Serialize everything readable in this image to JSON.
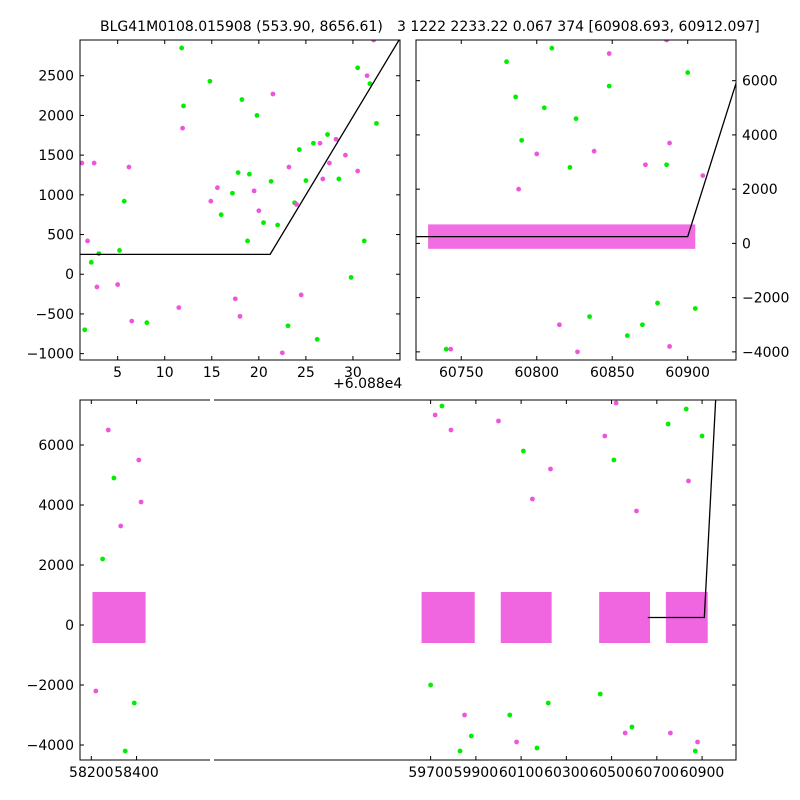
{
  "title_left": "BLG41M0108.015908 (553.90, 8656.61)",
  "title_right": "3 1222 2233.22 0.067 374 [60908.693, 60912.097]",
  "colors": {
    "series_1": "#00ee00",
    "series_2": "#ee55dd",
    "model": "#000000"
  },
  "chart_data": [
    {
      "id": "panel_zoom_recent",
      "type": "scatter",
      "x_offset_label": "+6.088e4",
      "xlim": [
        1,
        35
      ],
      "ylim": [
        -1080,
        2950
      ],
      "xticks": [
        5,
        10,
        15,
        20,
        25,
        30
      ],
      "yticks": [
        -1000,
        -500,
        0,
        500,
        1000,
        1500,
        2000,
        2500
      ],
      "series": [
        {
          "color": "#00ee00",
          "points": [
            [
              1.5,
              -700
            ],
            [
              2.2,
              150
            ],
            [
              3,
              260
            ],
            [
              5.2,
              300
            ],
            [
              5.7,
              920
            ],
            [
              8.1,
              -610
            ],
            [
              11.8,
              2850
            ],
            [
              12,
              2120
            ],
            [
              14.8,
              2430
            ],
            [
              16,
              750
            ],
            [
              17.2,
              1020
            ],
            [
              17.8,
              1280
            ],
            [
              18.2,
              2200
            ],
            [
              19,
              1260
            ],
            [
              19.8,
              2000
            ],
            [
              21.3,
              1170
            ],
            [
              22,
              620
            ],
            [
              23.1,
              -650
            ],
            [
              24.3,
              1570
            ],
            [
              25,
              1180
            ],
            [
              25.8,
              1650
            ],
            [
              26.2,
              -820
            ],
            [
              27.3,
              1760
            ],
            [
              29.8,
              -40
            ],
            [
              30.5,
              2600
            ],
            [
              31.2,
              420
            ],
            [
              31.8,
              2400
            ],
            [
              32.5,
              1900
            ],
            [
              20.5,
              650
            ],
            [
              18.8,
              420
            ],
            [
              23.8,
              900
            ],
            [
              28.5,
              1200
            ]
          ]
        },
        {
          "color": "#ee55dd",
          "points": [
            [
              1.2,
              1400
            ],
            [
              1.8,
              420
            ],
            [
              2.5,
              1400
            ],
            [
              2.8,
              -160
            ],
            [
              5,
              -130
            ],
            [
              6.2,
              1350
            ],
            [
              6.5,
              -590
            ],
            [
              11.5,
              -420
            ],
            [
              11.9,
              1840
            ],
            [
              14.9,
              920
            ],
            [
              15.6,
              1090
            ],
            [
              17.5,
              -310
            ],
            [
              18,
              -530
            ],
            [
              21.5,
              2270
            ],
            [
              22.5,
              -990
            ],
            [
              23.2,
              1350
            ],
            [
              24.5,
              -260
            ],
            [
              26.5,
              1650
            ],
            [
              27.5,
              1400
            ],
            [
              28.2,
              1700
            ],
            [
              29.2,
              1500
            ],
            [
              30.5,
              1300
            ],
            [
              31.5,
              2500
            ],
            [
              32.2,
              2950
            ],
            [
              19.5,
              1050
            ],
            [
              24,
              880
            ],
            [
              20,
              800
            ],
            [
              26.8,
              1200
            ]
          ]
        }
      ],
      "model": [
        [
          1,
          250
        ],
        [
          21.2,
          250
        ],
        [
          34.9,
          2950
        ]
      ]
    },
    {
      "id": "panel_season_recent",
      "type": "scatter",
      "xlim": [
        60720,
        60932
      ],
      "ylim": [
        -4300,
        7500
      ],
      "xticks": [
        60750,
        60800,
        60850,
        60900
      ],
      "yticks": [
        -4000,
        -2000,
        0,
        2000,
        4000,
        6000
      ],
      "series": [
        {
          "color": "#00ee00",
          "points": [
            [
              60740,
              -3900
            ],
            [
              60780,
              6700
            ],
            [
              60786,
              5400
            ],
            [
              60790,
              3800
            ],
            [
              60805,
              5000
            ],
            [
              60810,
              7200
            ],
            [
              60822,
              2800
            ],
            [
              60826,
              4600
            ],
            [
              60835,
              -2700
            ],
            [
              60848,
              5800
            ],
            [
              60860,
              -3400
            ],
            [
              60870,
              -3000
            ],
            [
              60880,
              -2200
            ],
            [
              60900,
              6300
            ],
            [
              60905,
              -2400
            ],
            [
              60886,
              2900
            ]
          ]
        },
        {
          "color": "#ee55dd",
          "points": [
            [
              60743,
              -3900
            ],
            [
              60788,
              2000
            ],
            [
              60800,
              3300
            ],
            [
              60815,
              -3000
            ],
            [
              60827,
              -4000
            ],
            [
              60838,
              3400
            ],
            [
              60848,
              7000
            ],
            [
              60872,
              2900
            ],
            [
              60886,
              7500
            ],
            [
              60888,
              3700
            ],
            [
              60888,
              -3800
            ],
            [
              60910,
              2500
            ]
          ]
        }
      ],
      "model": [
        [
          60720,
          250
        ],
        [
          60900,
          250
        ],
        [
          60932,
          5900
        ]
      ]
    },
    {
      "id": "panel_full",
      "type": "scatter",
      "xlim": [
        58150,
        61050
      ],
      "ylim": [
        -4500,
        7500
      ],
      "xticks": [
        58200,
        58400,
        59700,
        59900,
        60100,
        60300,
        60500,
        60700,
        60900
      ],
      "yticks": [
        -4000,
        -2000,
        0,
        2000,
        4000,
        6000
      ],
      "series": [
        {
          "color": "#00ee00",
          "points": [
            [
              58250,
              2200
            ],
            [
              58300,
              4900
            ],
            [
              58350,
              -4200
            ],
            [
              58390,
              -2600
            ],
            [
              59700,
              -2000
            ],
            [
              59750,
              7300
            ],
            [
              59830,
              -4200
            ],
            [
              59880,
              -3700
            ],
            [
              60050,
              -3000
            ],
            [
              60110,
              5800
            ],
            [
              60170,
              -4100
            ],
            [
              60220,
              -2600
            ],
            [
              60450,
              -2300
            ],
            [
              60510,
              5500
            ],
            [
              60590,
              -3400
            ],
            [
              60750,
              6700
            ],
            [
              60830,
              7200
            ],
            [
              60870,
              -4200
            ],
            [
              60900,
              6300
            ]
          ]
        },
        {
          "color": "#ee55dd",
          "points": [
            [
              58220,
              -2200
            ],
            [
              58275,
              6500
            ],
            [
              58330,
              3300
            ],
            [
              58410,
              5500
            ],
            [
              58420,
              4100
            ],
            [
              59720,
              7000
            ],
            [
              59790,
              6500
            ],
            [
              59850,
              -3000
            ],
            [
              60000,
              6800
            ],
            [
              60080,
              -3900
            ],
            [
              60150,
              4200
            ],
            [
              60230,
              5200
            ],
            [
              60470,
              6300
            ],
            [
              60520,
              7400
            ],
            [
              60560,
              -3600
            ],
            [
              60610,
              3800
            ],
            [
              60760,
              -3600
            ],
            [
              60840,
              4800
            ],
            [
              60880,
              -3900
            ]
          ]
        }
      ],
      "model": [
        [
          60660,
          250
        ],
        [
          60910,
          250
        ],
        [
          60960,
          7500
        ]
      ]
    }
  ]
}
